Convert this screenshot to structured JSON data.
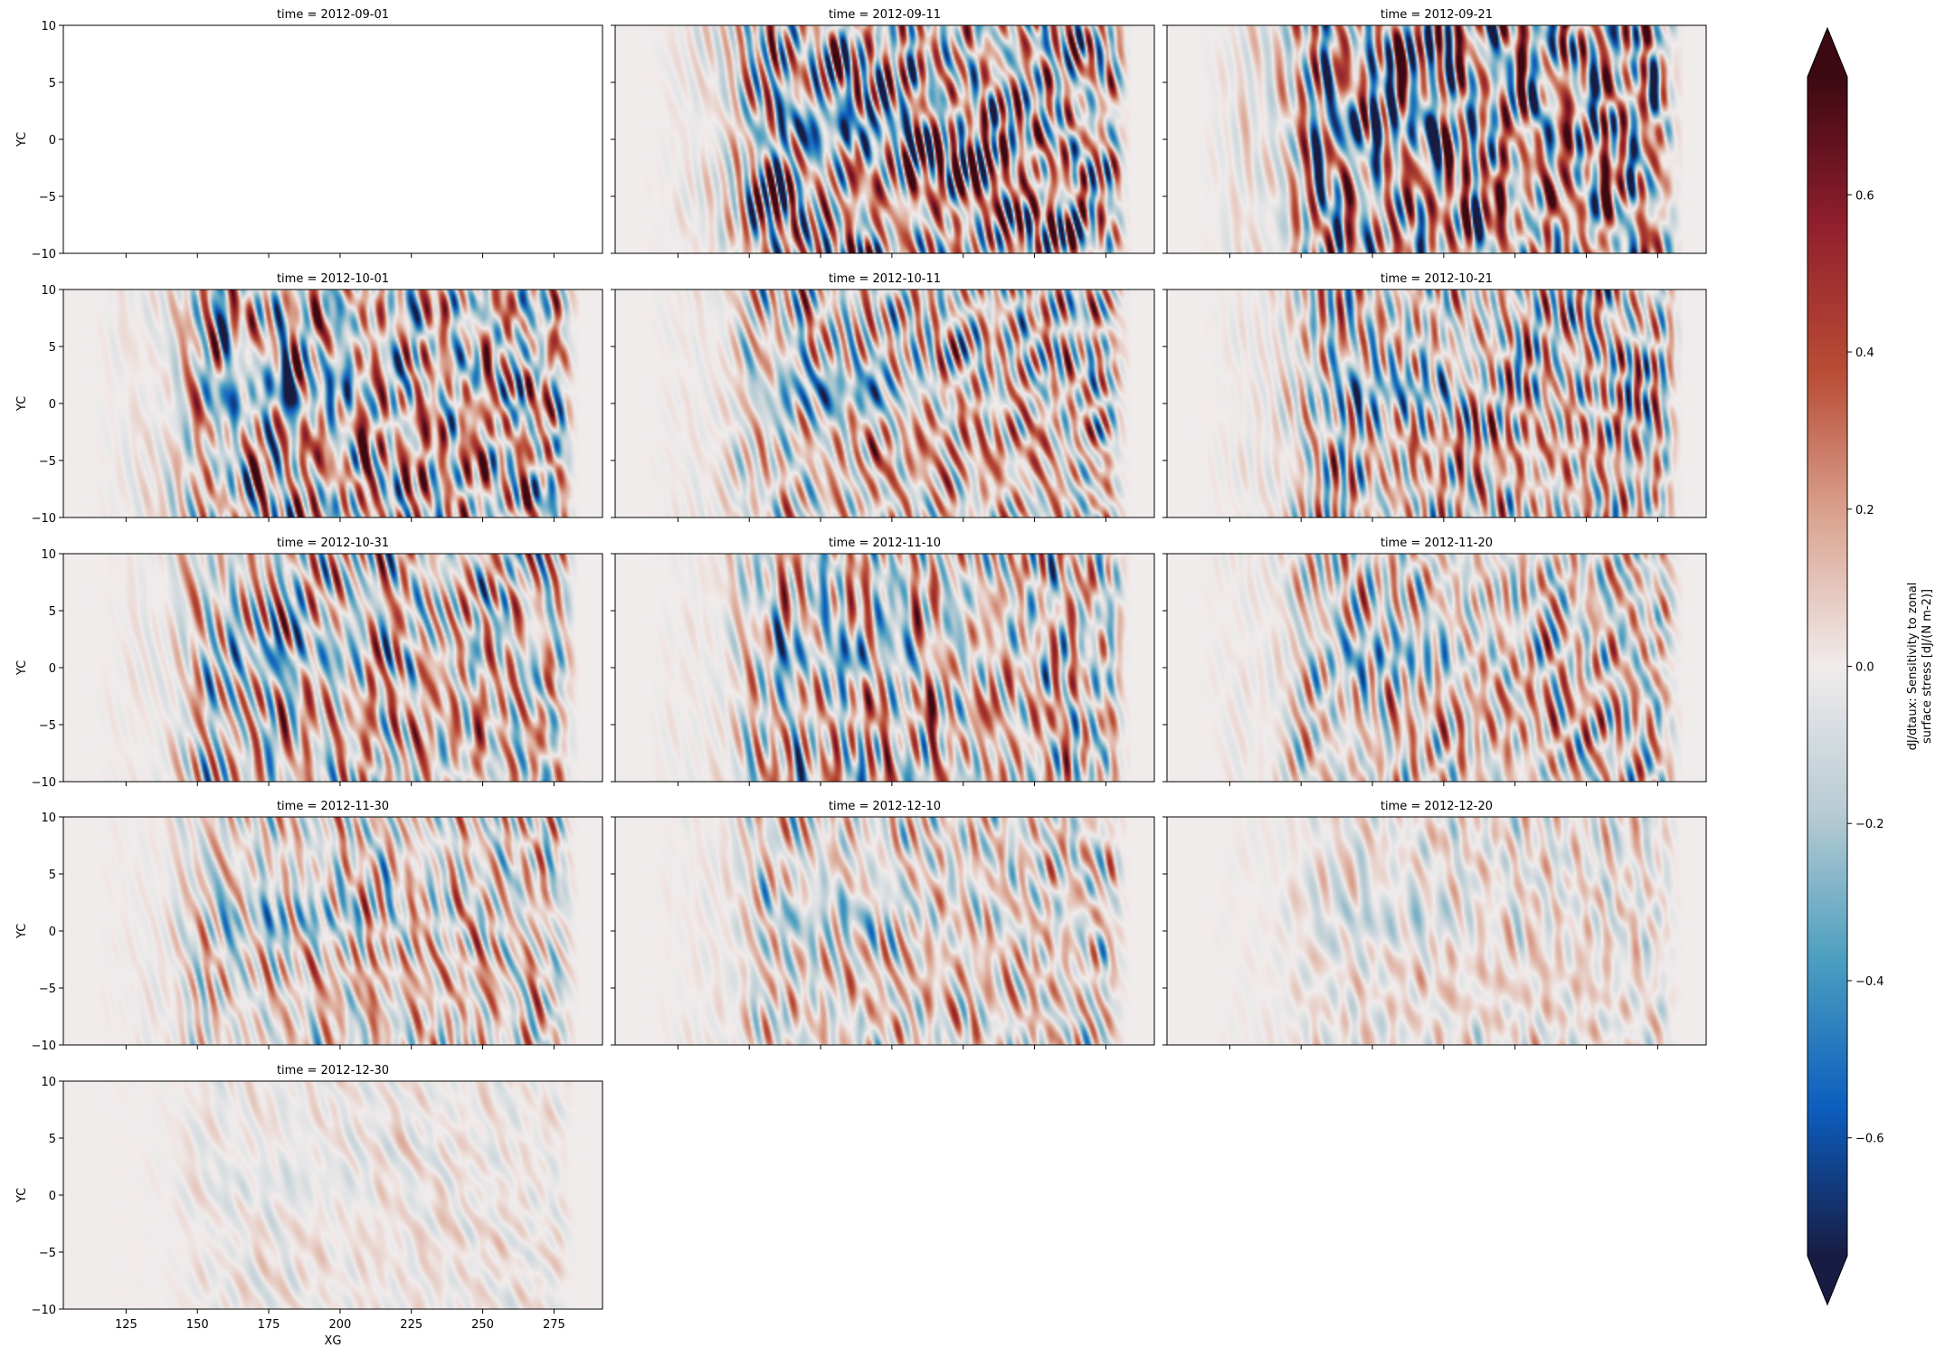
{
  "chart_data": {
    "type": "heatmap",
    "layout": "facet-grid",
    "facet_variable": "time",
    "facet_title_prefix": "time = ",
    "facets": [
      {
        "time": "2012-09-01",
        "amplitude": 0.0,
        "empty": true
      },
      {
        "time": "2012-09-11",
        "amplitude": 0.75
      },
      {
        "time": "2012-09-21",
        "amplitude": 0.72
      },
      {
        "time": "2012-10-01",
        "amplitude": 0.68
      },
      {
        "time": "2012-10-11",
        "amplitude": 0.62
      },
      {
        "time": "2012-10-21",
        "amplitude": 0.56
      },
      {
        "time": "2012-10-31",
        "amplitude": 0.52
      },
      {
        "time": "2012-11-10",
        "amplitude": 0.48
      },
      {
        "time": "2012-11-20",
        "amplitude": 0.45
      },
      {
        "time": "2012-11-30",
        "amplitude": 0.4
      },
      {
        "time": "2012-12-10",
        "amplitude": 0.3
      },
      {
        "time": "2012-12-20",
        "amplitude": 0.22
      },
      {
        "time": "2012-12-30",
        "amplitude": 0.1
      }
    ],
    "xlabel": "XG",
    "ylabel": "YC",
    "xlim": [
      103,
      292
    ],
    "ylim": [
      -10,
      10
    ],
    "xticks": [
      125,
      150,
      175,
      200,
      225,
      250,
      275
    ],
    "yticks": [
      -10,
      -5,
      0,
      5,
      10
    ],
    "colorbar": {
      "label_line1": "dJ/dtaux: Sensitivity to zonal",
      "label_line2": "surface stress [dJ/(N m-2)]",
      "vmin": -0.75,
      "vmax": 0.75,
      "ticks": [
        -0.6,
        -0.4,
        -0.2,
        0.0,
        0.2,
        0.4,
        0.6
      ],
      "tick_labels": [
        "−0.6",
        "−0.4",
        "−0.2",
        "0.0",
        "0.2",
        "0.4",
        "0.6"
      ],
      "extend": "both",
      "colormap": "balance",
      "colors": [
        "#181c43",
        "#0d5ebe",
        "#4b9ec0",
        "#b7cbd3",
        "#f1ecec",
        "#dba592",
        "#b94c35",
        "#911f2d",
        "#3c0912"
      ]
    },
    "grid": false
  }
}
